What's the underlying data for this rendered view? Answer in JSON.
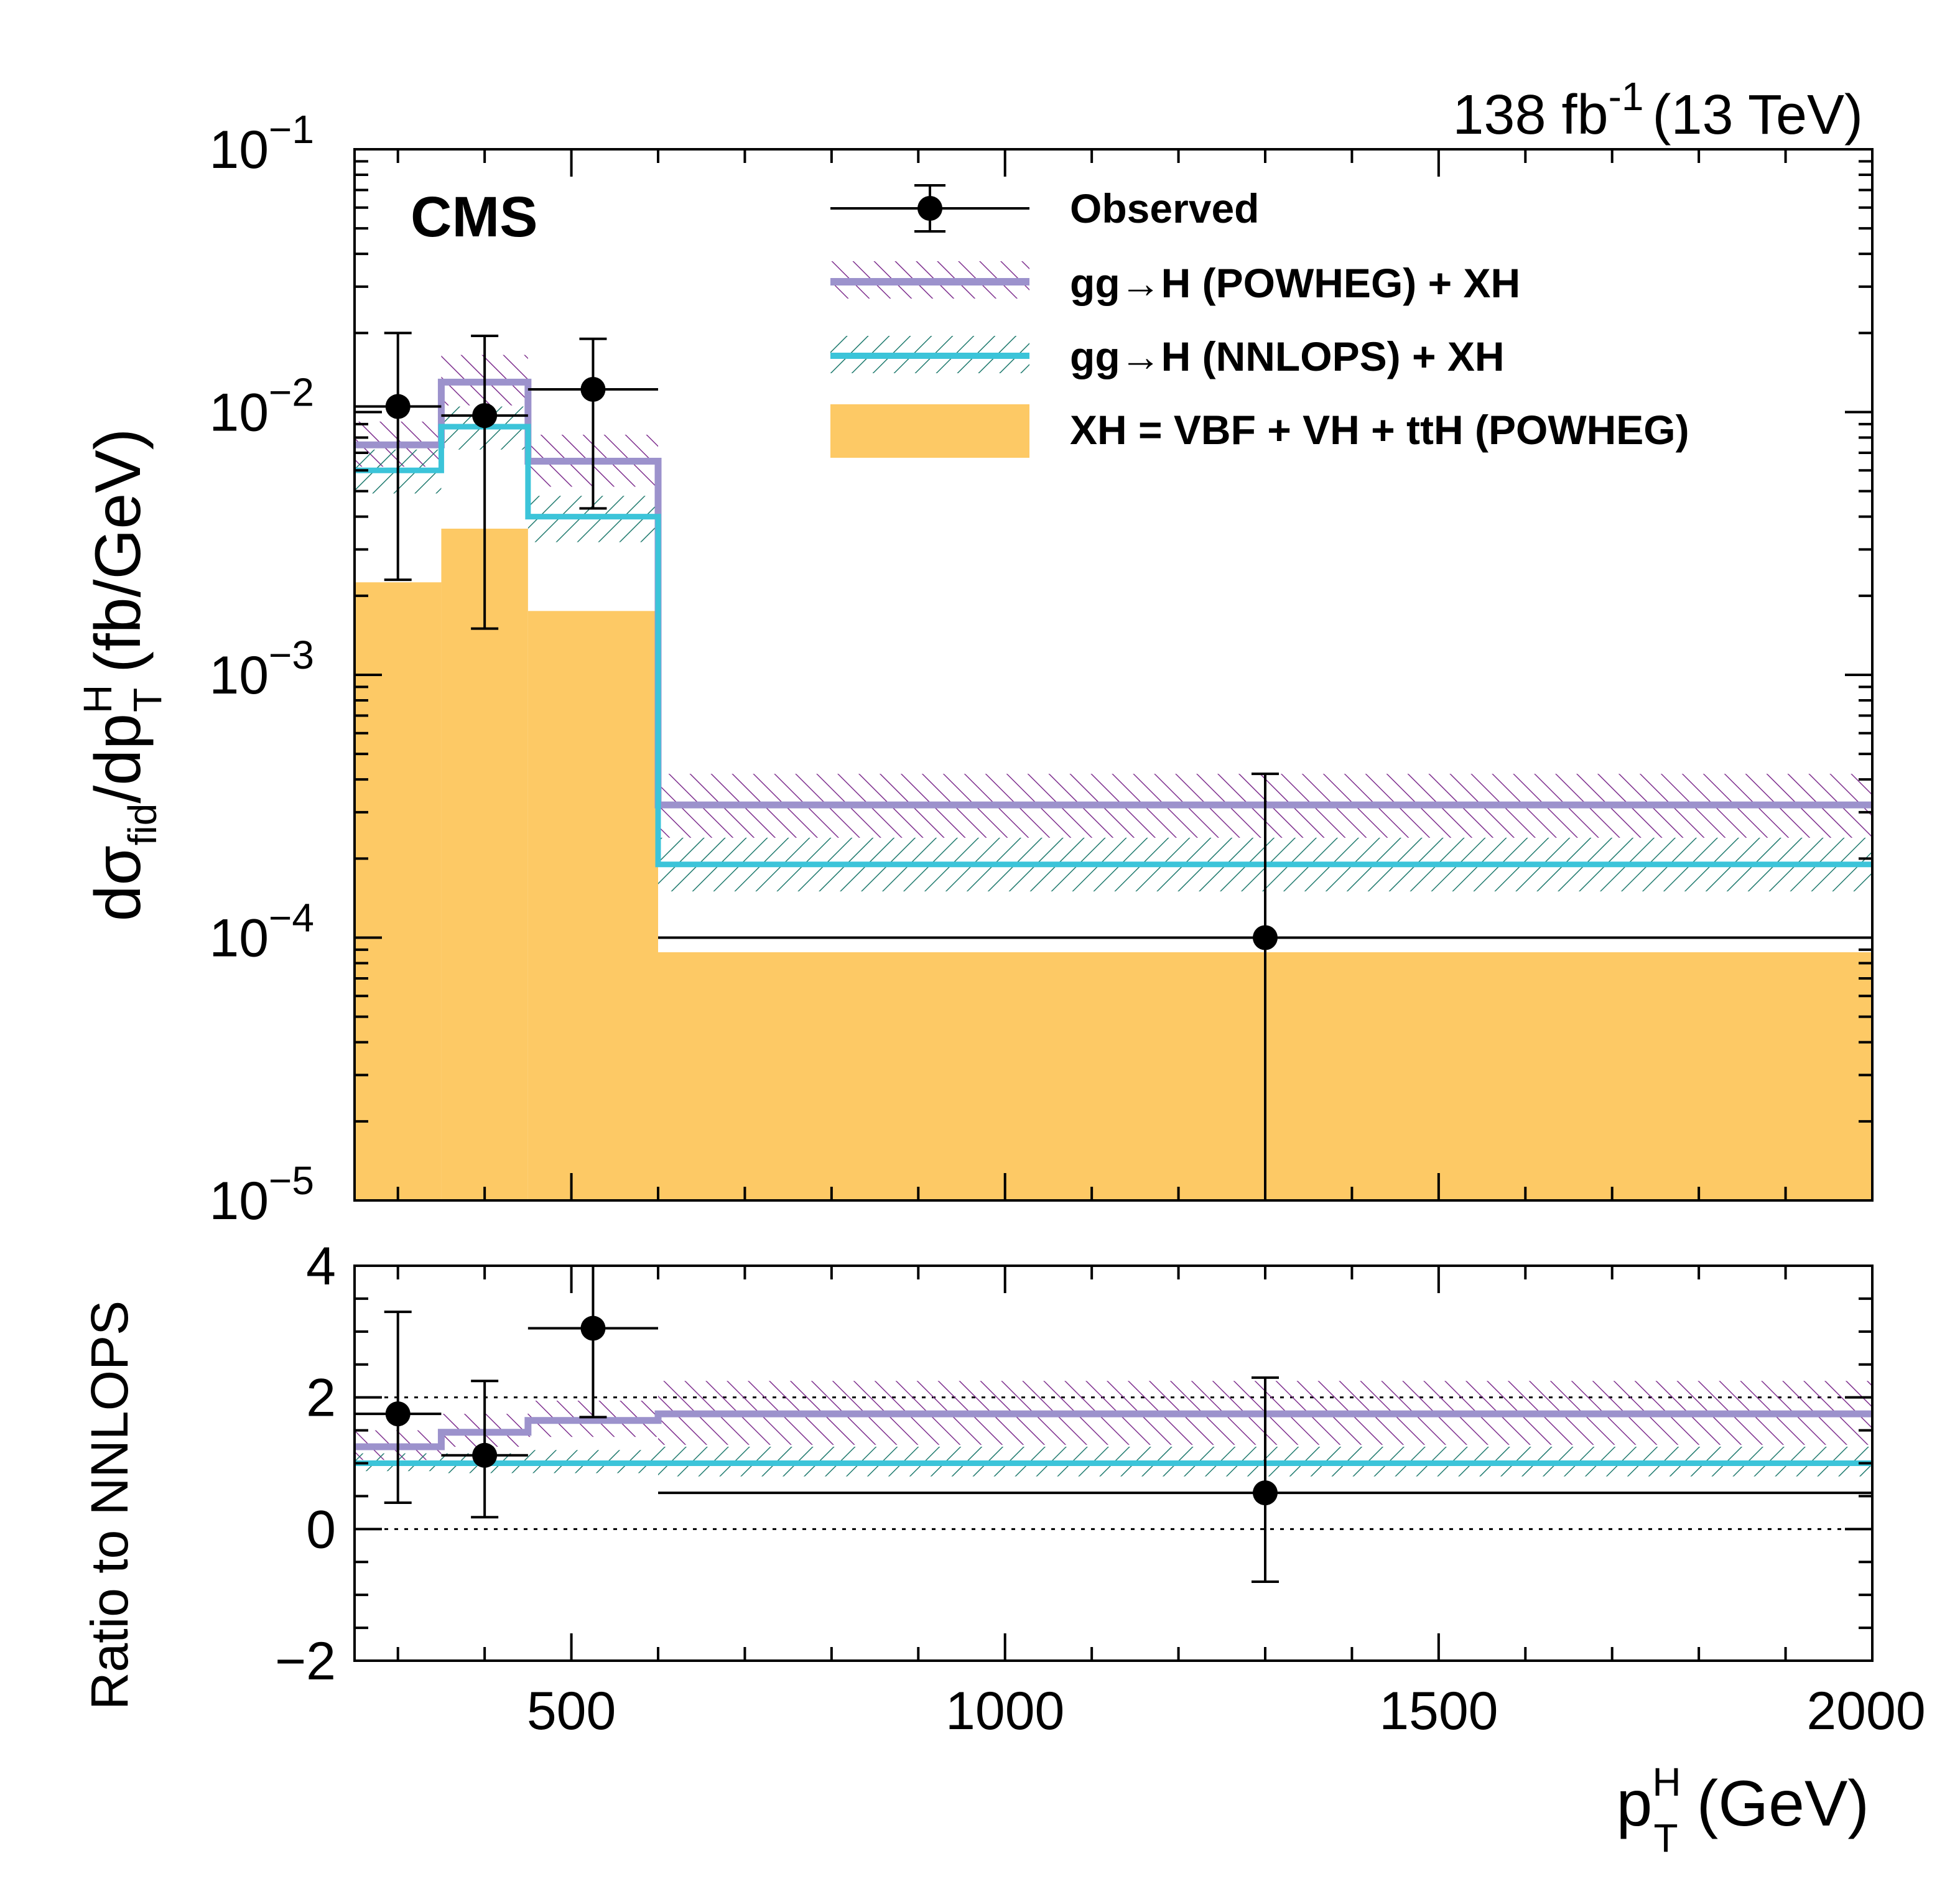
{
  "header": {
    "lumi_prefix": "138 fb",
    "lumi_exponent": "-1",
    "lumi_suffix": "(13 TeV)",
    "experiment": "CMS"
  },
  "colors": {
    "observed": "#000000",
    "powheg": "#9c92cc",
    "powheg_hatch": "#7e2f8e",
    "nnlops": "#3cc4d9",
    "nnlops_hatch": "#1f7a6e",
    "xh": "#fdc965"
  },
  "legend": {
    "observed": "Observed",
    "powheg": "gg→H (POWHEG) + XH",
    "nnlops": "gg→H (NNLOPS) + XH",
    "xh": "XH = VBF + VH + ttH (POWHEG)"
  },
  "axes": {
    "main_ylabel_parts": [
      "dσ",
      "fid",
      "/dp",
      "H",
      "T",
      "(fb/GeV)"
    ],
    "ratio_ylabel": "Ratio to NNLOPS",
    "xlabel_parts": [
      "p",
      "H",
      "T",
      "(GeV)"
    ],
    "main_ytick_labels": [
      {
        "base": "10",
        "exp": "−1",
        "value": 0.1
      },
      {
        "base": "10",
        "exp": "−2",
        "value": 0.01
      },
      {
        "base": "10",
        "exp": "−3",
        "value": 0.001
      },
      {
        "base": "10",
        "exp": "−4",
        "value": 0.0001
      },
      {
        "base": "10",
        "exp": "−5",
        "value": 1e-05
      }
    ],
    "ratio_ytick_labels": [
      "4",
      "2",
      "0",
      "−2"
    ],
    "ratio_ytick_values": [
      4,
      2,
      0,
      -2
    ],
    "xtick_labels": [
      "500",
      "1000",
      "1500",
      "2000"
    ],
    "xtick_values": [
      500,
      1000,
      1500,
      2000
    ]
  },
  "chart_data": [
    {
      "panel": "main",
      "type": "histogram",
      "xlim": [
        250,
        2000
      ],
      "ylim": [
        1e-05,
        0.1
      ],
      "ylog": true,
      "bins": [
        [
          250,
          350
        ],
        [
          350,
          450
        ],
        [
          450,
          600
        ],
        [
          600,
          2000
        ]
      ],
      "xh_values": [
        0.00225,
        0.0036,
        0.00175,
        8.8e-05
      ],
      "powheg": {
        "values": [
          0.0075,
          0.013,
          0.0065,
          0.00032
        ],
        "band_low": [
          0.0062,
          0.0106,
          0.0052,
          0.00024
        ],
        "band_high": [
          0.0092,
          0.0165,
          0.0082,
          0.00042
        ]
      },
      "nnlops": {
        "values": [
          0.006,
          0.0088,
          0.004,
          0.00019
        ],
        "band_low": [
          0.0049,
          0.0072,
          0.0032,
          0.00015
        ],
        "band_high": [
          0.0072,
          0.0105,
          0.0048,
          0.00024
        ]
      },
      "observed": {
        "x": [
          300,
          400,
          525,
          1300
        ],
        "y": [
          0.0105,
          0.0097,
          0.0122,
          0.0001
        ],
        "xerr_low": [
          50,
          50,
          75,
          700
        ],
        "xerr_high": [
          50,
          50,
          75,
          700
        ],
        "y_low": [
          0.0023,
          0.0015,
          0.0043,
          1e-06
        ],
        "y_high": [
          0.02,
          0.0195,
          0.019,
          0.00042
        ]
      }
    },
    {
      "panel": "ratio",
      "type": "histogram",
      "xlim": [
        250,
        2000
      ],
      "ylim": [
        -2,
        4
      ],
      "bins": [
        [
          250,
          350
        ],
        [
          350,
          450
        ],
        [
          450,
          600
        ],
        [
          600,
          2000
        ]
      ],
      "reference_lines": [
        0,
        2
      ],
      "powheg": {
        "values": [
          1.25,
          1.47,
          1.65,
          1.75
        ],
        "band_low": [
          1.05,
          1.25,
          1.4,
          1.28
        ],
        "band_high": [
          1.5,
          1.75,
          1.95,
          2.25
        ]
      },
      "nnlops": {
        "values": [
          1.0,
          1.0,
          1.0,
          1.0
        ],
        "band_low": [
          0.88,
          0.85,
          0.85,
          0.8
        ],
        "band_high": [
          1.15,
          1.15,
          1.2,
          1.25
        ]
      },
      "observed": {
        "x": [
          300,
          400,
          525,
          1300
        ],
        "y": [
          1.75,
          1.12,
          3.05,
          0.55
        ],
        "xerr_low": [
          50,
          50,
          75,
          700
        ],
        "xerr_high": [
          50,
          50,
          75,
          700
        ],
        "y_low": [
          0.4,
          0.18,
          1.7,
          -0.8
        ],
        "y_high": [
          3.3,
          2.25,
          4.2,
          2.3
        ]
      }
    }
  ]
}
